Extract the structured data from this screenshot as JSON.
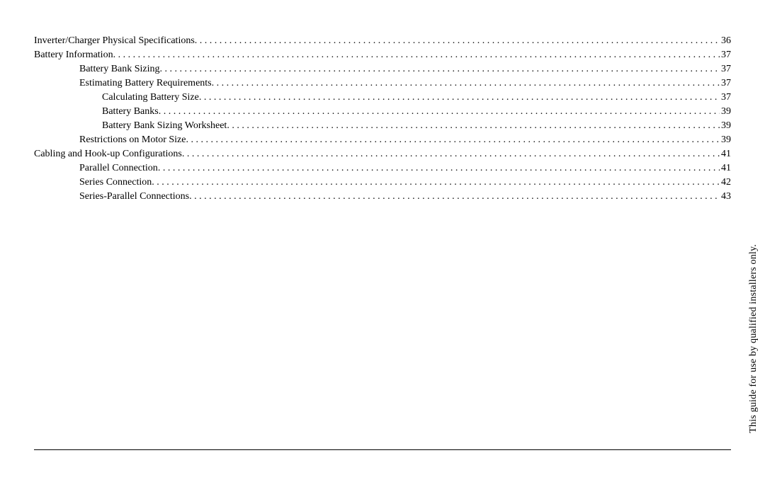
{
  "side_note": "This guide for use by qualified installers only.",
  "toc": {
    "entries": [
      {
        "title": "Inverter/Charger Physical Specifications",
        "page": "36",
        "indent": 0
      },
      {
        "title": "Battery Information",
        "page": "37",
        "indent": 0
      },
      {
        "title": "Battery Bank Sizing",
        "page": "37",
        "indent": 1
      },
      {
        "title": "Estimating Battery Requirements",
        "page": "37",
        "indent": 1
      },
      {
        "title": "Calculating Battery Size",
        "page": "37",
        "indent": 2
      },
      {
        "title": "Battery Banks",
        "page": "39",
        "indent": 2
      },
      {
        "title": "Battery Bank Sizing Worksheet",
        "page": "39",
        "indent": 2
      },
      {
        "title": "Restrictions on Motor Size",
        "page": "39",
        "indent": 1
      },
      {
        "title": "Cabling and Hook-up Configurations",
        "page": "41",
        "indent": 0
      },
      {
        "title": "Parallel Connection",
        "page": "41",
        "indent": 1
      },
      {
        "title": "Series Connection",
        "page": "42",
        "indent": 1
      },
      {
        "title": "Series-Parallel Connections",
        "page": "43",
        "indent": 1
      }
    ]
  }
}
